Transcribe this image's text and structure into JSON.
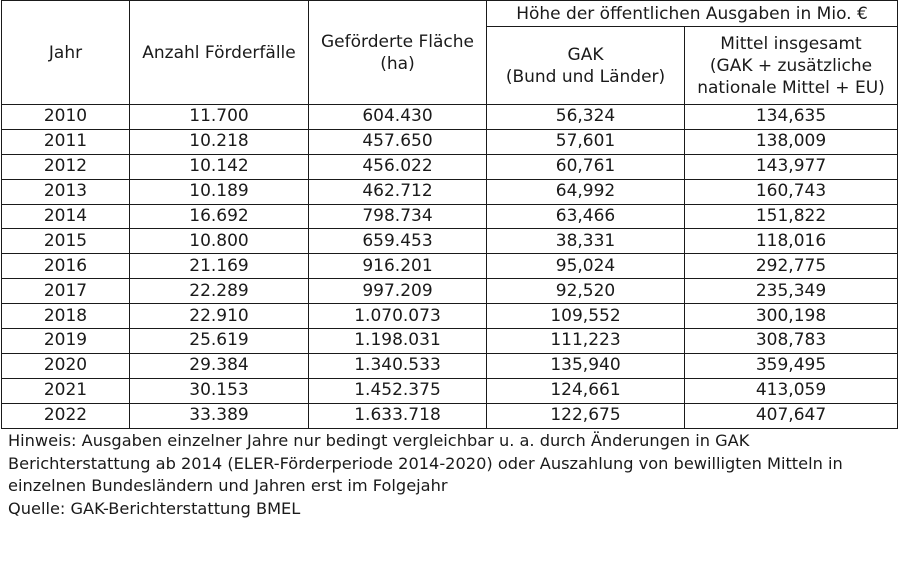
{
  "table": {
    "headers": {
      "jahr": "Jahr",
      "anzahl": "Anzahl Förderfälle",
      "flaeche_line1": "Geförderte Fläche",
      "flaeche_line2": "(ha)",
      "group": "Höhe der öffentlichen Ausgaben in Mio. €",
      "gak_line1": "GAK",
      "gak_line2": "(Bund und Länder)",
      "mittel_line1": "Mittel insgesamt",
      "mittel_line2": "(GAK + zusätzliche",
      "mittel_line3": "nationale Mittel + EU)"
    },
    "rows": [
      [
        "2010",
        "11.700",
        "604.430",
        "56,324",
        "134,635"
      ],
      [
        "2011",
        "10.218",
        "457.650",
        "57,601",
        "138,009"
      ],
      [
        "2012",
        "10.142",
        "456.022",
        "60,761",
        "143,977"
      ],
      [
        "2013",
        "10.189",
        "462.712",
        "64,992",
        "160,743"
      ],
      [
        "2014",
        "16.692",
        "798.734",
        "63,466",
        "151,822"
      ],
      [
        "2015",
        "10.800",
        "659.453",
        "38,331",
        "118,016"
      ],
      [
        "2016",
        "21.169",
        "916.201",
        "95,024",
        "292,775"
      ],
      [
        "2017",
        "22.289",
        "997.209",
        "92,520",
        "235,349"
      ],
      [
        "2018",
        "22.910",
        "1.070.073",
        "109,552",
        "300,198"
      ],
      [
        "2019",
        "25.619",
        "1.198.031",
        "111,223",
        "308,783"
      ],
      [
        "2020",
        "29.384",
        "1.340.533",
        "135,940",
        "359,495"
      ],
      [
        "2021",
        "30.153",
        "1.452.375",
        "124,661",
        "413,059"
      ],
      [
        "2022",
        "33.389",
        "1.633.718",
        "122,675",
        "407,647"
      ]
    ]
  },
  "notes": {
    "hinweis": "Hinweis: Ausgaben einzelner Jahre nur bedingt vergleichbar u. a. durch Änderungen in GAK Berichterstattung ab 2014 (ELER-Förderperiode 2014-2020) oder Auszahlung von bewilligten Mitteln in einzelnen Bundesländern und Jahren erst im Folgejahr",
    "quelle": "Quelle: GAK-Berichterstattung BMEL"
  }
}
